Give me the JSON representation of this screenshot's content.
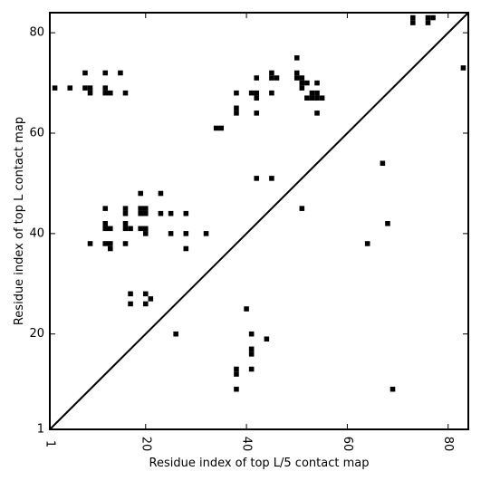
{
  "chart_data": {
    "type": "scatter",
    "marker": "square",
    "xlabel": "Residue index of top L/5 contact map",
    "ylabel": "Residue index of top L contact map",
    "xlim": [
      1,
      84
    ],
    "ylim": [
      1,
      84
    ],
    "xticks": [
      {
        "value": 1,
        "label": "1"
      },
      {
        "value": 20,
        "label": "20"
      },
      {
        "value": 40,
        "label": "40"
      },
      {
        "value": 60,
        "label": "60"
      },
      {
        "value": 80,
        "label": "80"
      }
    ],
    "yticks": [
      {
        "value": 1,
        "label": "1"
      },
      {
        "value": 20,
        "label": "20"
      },
      {
        "value": 40,
        "label": "40"
      },
      {
        "value": 60,
        "label": "60"
      },
      {
        "value": 80,
        "label": "80"
      }
    ],
    "diagonal": {
      "x": [
        1,
        84
      ],
      "y": [
        1,
        84
      ]
    },
    "upper_points": [
      [
        2,
        69
      ],
      [
        5,
        69
      ],
      [
        8,
        72
      ],
      [
        8,
        69
      ],
      [
        9,
        69
      ],
      [
        9,
        68
      ],
      [
        12,
        72
      ],
      [
        12,
        69
      ],
      [
        12,
        68
      ],
      [
        13,
        68
      ],
      [
        15,
        72
      ],
      [
        16,
        68
      ],
      [
        12,
        45
      ],
      [
        12,
        42
      ],
      [
        12,
        41
      ],
      [
        13,
        41
      ],
      [
        16,
        45
      ],
      [
        16,
        44
      ],
      [
        16,
        42
      ],
      [
        16,
        41
      ],
      [
        17,
        41
      ],
      [
        19,
        48
      ],
      [
        19,
        45
      ],
      [
        19,
        44
      ],
      [
        20,
        45
      ],
      [
        20,
        44
      ],
      [
        19,
        41
      ],
      [
        20,
        41
      ],
      [
        20,
        40
      ],
      [
        23,
        48
      ],
      [
        23,
        44
      ],
      [
        25,
        44
      ],
      [
        25,
        40
      ],
      [
        28,
        44
      ],
      [
        28,
        40
      ],
      [
        28,
        37
      ],
      [
        32,
        40
      ],
      [
        9,
        38
      ],
      [
        12,
        38
      ],
      [
        13,
        38
      ],
      [
        13,
        37
      ],
      [
        16,
        38
      ],
      [
        17,
        28
      ],
      [
        17,
        26
      ],
      [
        20,
        28
      ],
      [
        20,
        26
      ],
      [
        21,
        27
      ],
      [
        34,
        61
      ],
      [
        35,
        61
      ],
      [
        38,
        68
      ],
      [
        38,
        65
      ],
      [
        38,
        64
      ],
      [
        41,
        68
      ],
      [
        42,
        68
      ],
      [
        42,
        67
      ],
      [
        42,
        71
      ],
      [
        42,
        64
      ],
      [
        45,
        72
      ],
      [
        45,
        71
      ],
      [
        46,
        71
      ],
      [
        45,
        68
      ],
      [
        42,
        51
      ],
      [
        45,
        51
      ],
      [
        50,
        75
      ],
      [
        50,
        72
      ],
      [
        50,
        71
      ],
      [
        51,
        71
      ],
      [
        51,
        70
      ],
      [
        51,
        69
      ],
      [
        52,
        70
      ],
      [
        53,
        68
      ],
      [
        54,
        68
      ],
      [
        52,
        67
      ],
      [
        53,
        67
      ],
      [
        54,
        67
      ],
      [
        55,
        67
      ],
      [
        54,
        70
      ],
      [
        54,
        64
      ],
      [
        51,
        45
      ],
      [
        73,
        83
      ],
      [
        73,
        82
      ],
      [
        76,
        83
      ],
      [
        76,
        82
      ],
      [
        77,
        83
      ],
      [
        83,
        73
      ]
    ],
    "lower_points": [
      [
        26,
        20
      ],
      [
        40,
        25
      ],
      [
        41,
        20
      ],
      [
        41,
        17
      ],
      [
        41,
        16
      ],
      [
        41,
        13
      ],
      [
        44,
        19
      ],
      [
        38,
        13
      ],
      [
        38,
        12
      ],
      [
        38,
        9
      ],
      [
        64,
        38
      ],
      [
        67,
        54
      ],
      [
        68,
        42
      ],
      [
        69,
        9
      ]
    ]
  }
}
